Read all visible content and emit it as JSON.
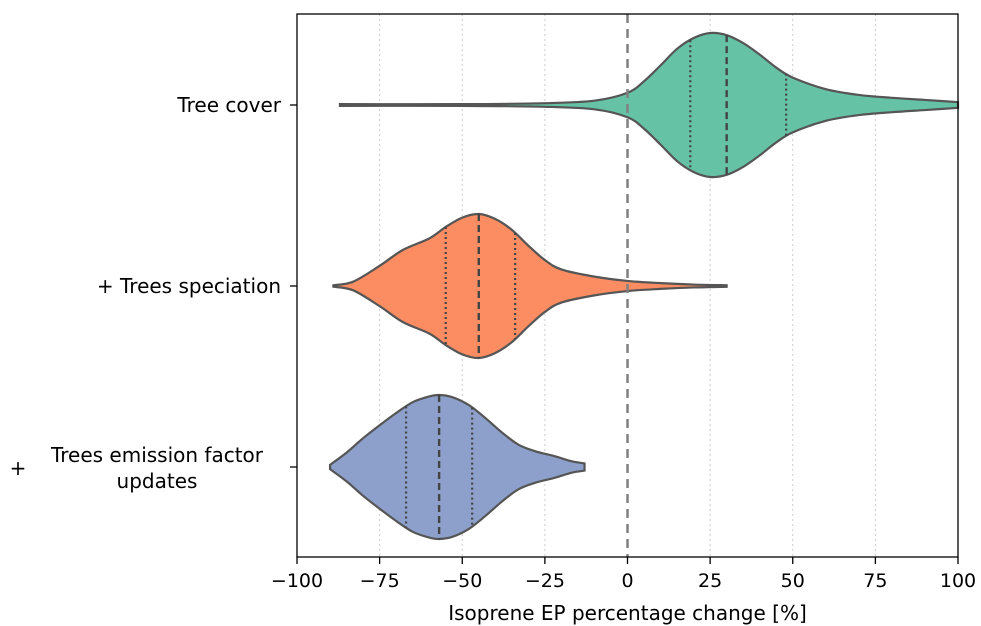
{
  "chart_data": {
    "type": "violin",
    "orientation": "horizontal",
    "xlabel": "Isoprene EP percentage change [%]",
    "xlim": [
      -100,
      100
    ],
    "xticks": [
      -100,
      -75,
      -50,
      -25,
      0,
      25,
      50,
      75,
      100
    ],
    "xtick_labels": [
      "−100",
      "−75",
      "−50",
      "−25",
      "0",
      "25",
      "50",
      "75",
      "100"
    ],
    "grid": "x-dotted",
    "reference_line": 0,
    "categories": [
      {
        "label": "Tree cover",
        "label_lines": [
          "Tree cover"
        ],
        "color": "#66c2a5",
        "min": -87,
        "max": 100,
        "q1": 19,
        "median": 30,
        "q3": 48,
        "profile": [
          [
            -87,
            0.012
          ],
          [
            -50,
            0.012
          ],
          [
            -25,
            0.025
          ],
          [
            -10,
            0.06
          ],
          [
            0,
            0.17
          ],
          [
            5,
            0.33
          ],
          [
            10,
            0.55
          ],
          [
            15,
            0.78
          ],
          [
            20,
            0.93
          ],
          [
            25,
            1.0
          ],
          [
            30,
            0.97
          ],
          [
            35,
            0.86
          ],
          [
            40,
            0.7
          ],
          [
            45,
            0.52
          ],
          [
            50,
            0.38
          ],
          [
            60,
            0.22
          ],
          [
            70,
            0.14
          ],
          [
            80,
            0.1
          ],
          [
            90,
            0.07
          ],
          [
            100,
            0.04
          ]
        ]
      },
      {
        "label": "+ Trees speciation",
        "label_lines": [
          "+ Trees speciation"
        ],
        "color": "#fc8d62",
        "min": -89,
        "max": 30,
        "q1": -55,
        "median": -45,
        "q3": -34,
        "profile": [
          [
            -89,
            0.01
          ],
          [
            -83,
            0.06
          ],
          [
            -75,
            0.28
          ],
          [
            -68,
            0.5
          ],
          [
            -60,
            0.66
          ],
          [
            -55,
            0.82
          ],
          [
            -50,
            0.95
          ],
          [
            -45,
            1.0
          ],
          [
            -40,
            0.93
          ],
          [
            -35,
            0.78
          ],
          [
            -30,
            0.56
          ],
          [
            -25,
            0.36
          ],
          [
            -20,
            0.23
          ],
          [
            -10,
            0.13
          ],
          [
            0,
            0.07
          ],
          [
            10,
            0.04
          ],
          [
            20,
            0.02
          ],
          [
            30,
            0.01
          ]
        ]
      },
      {
        "label": "+ Trees emission factor updates",
        "label_lines": [
          "Trees emission factor",
          "updates"
        ],
        "label_prefix": "+",
        "color": "#8da0cb",
        "min": -90,
        "max": -13,
        "q1": -67,
        "median": -57,
        "q3": -47,
        "profile": [
          [
            -90,
            0.03
          ],
          [
            -85,
            0.2
          ],
          [
            -80,
            0.4
          ],
          [
            -75,
            0.58
          ],
          [
            -70,
            0.75
          ],
          [
            -65,
            0.9
          ],
          [
            -60,
            0.98
          ],
          [
            -57,
            1.0
          ],
          [
            -53,
            0.97
          ],
          [
            -48,
            0.86
          ],
          [
            -43,
            0.68
          ],
          [
            -38,
            0.48
          ],
          [
            -33,
            0.31
          ],
          [
            -28,
            0.22
          ],
          [
            -22,
            0.15
          ],
          [
            -17,
            0.08
          ],
          [
            -13,
            0.05
          ]
        ]
      }
    ]
  }
}
